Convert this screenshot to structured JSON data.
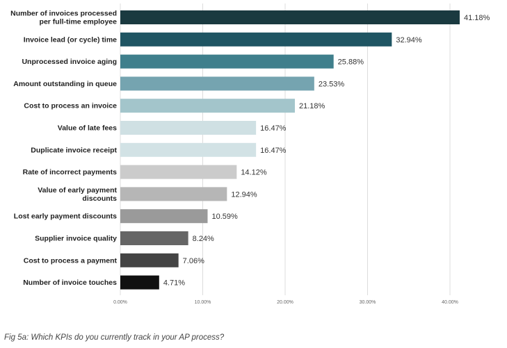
{
  "chart_data": {
    "type": "bar",
    "orientation": "horizontal",
    "categories": [
      "Number of invoices processed\nper full-time employee",
      "Invoice lead (or cycle) time",
      "Unprocessed invoice aging",
      "Amount outstanding in queue",
      "Cost to process an invoice",
      "Value of late fees",
      "Duplicate invoice receipt",
      "Rate of incorrect payments",
      "Value of early payment\ndiscounts",
      "Lost early payment discounts",
      "Supplier invoice quality",
      "Cost to process a payment",
      "Number of invoice touches"
    ],
    "values": [
      41.18,
      32.94,
      25.88,
      23.53,
      21.18,
      16.47,
      16.47,
      14.12,
      12.94,
      10.59,
      8.24,
      7.06,
      4.71
    ],
    "value_labels": [
      "41.18%",
      "32.94%",
      "25.88%",
      "23.53%",
      "21.18%",
      "16.47%",
      "16.47%",
      "14.12%",
      "12.94%",
      "10.59%",
      "8.24%",
      "7.06%",
      "4.71%"
    ],
    "bar_colors": [
      "#1a3a40",
      "#1f5563",
      "#3f7f8c",
      "#75a4b0",
      "#a3c5cb",
      "#cfe0e3",
      "#d2e2e5",
      "#cbcbcb",
      "#b6b6b6",
      "#9a9a9a",
      "#666666",
      "#444444",
      "#111111"
    ],
    "xlim": [
      0,
      45
    ],
    "x_ticks": [
      0,
      10,
      20,
      30,
      40
    ],
    "x_tick_labels": [
      "0.00%",
      "10.00%",
      "20.00%",
      "30.00%",
      "40.00%"
    ],
    "grid": true,
    "title": "",
    "xlabel": "",
    "ylabel": ""
  },
  "caption": "Fig 5a: Which KPIs do you currently track in your AP process?"
}
